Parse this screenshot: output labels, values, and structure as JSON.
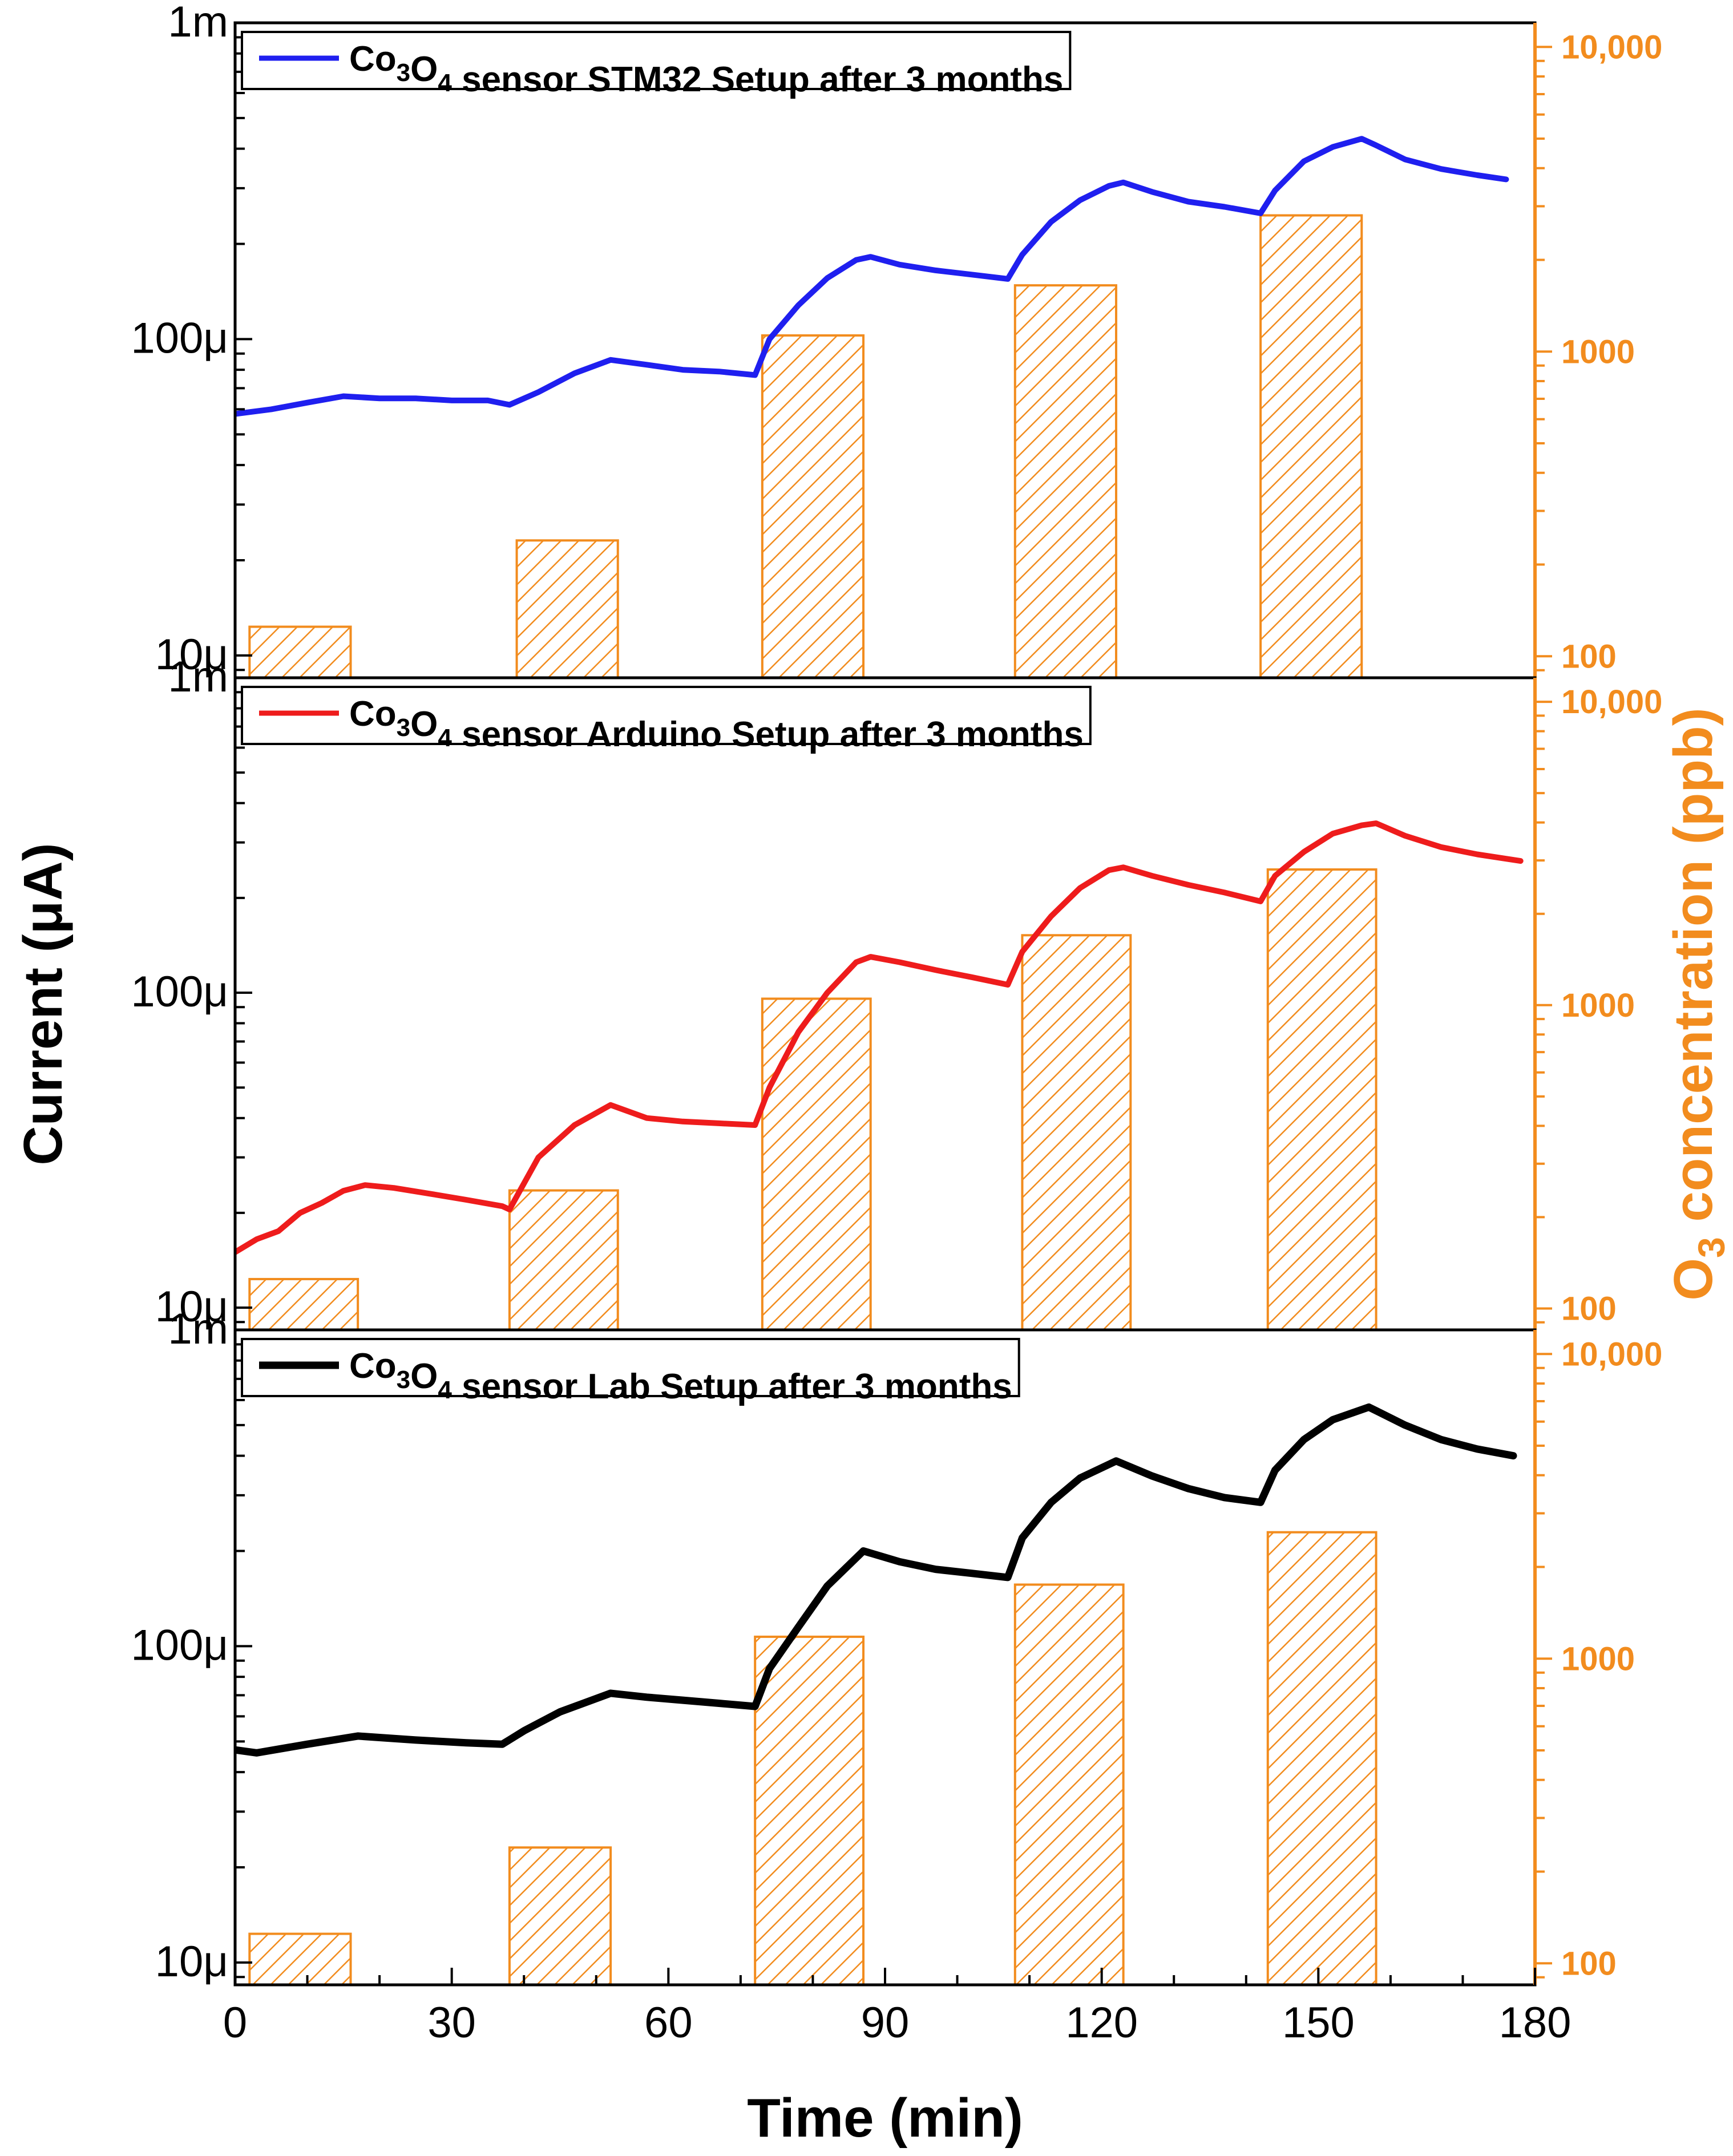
{
  "chart_data": {
    "type": "line+bar",
    "shared_x": {
      "label": "Time (min)",
      "ticks": [
        "0",
        "30",
        "60",
        "90",
        "120",
        "150",
        "180"
      ],
      "range": [
        0,
        180
      ]
    },
    "ylabel_left": "Current (μA)",
    "ylabel_right": "O3 concentration (ppb)",
    "colors": {
      "stm32": "#1F1FEF",
      "arduino": "#EE1C1C",
      "lab": "#000000",
      "bars": "#F28C1E"
    },
    "panels": [
      {
        "id": "stm32",
        "legend": {
          "prefix": "Co",
          "sub1": "3",
          "mid": "O",
          "sub2": "4",
          "suffix": " sensor STM32 Setup after 3 months"
        },
        "line_color": "#1F1FEF",
        "y_left": {
          "scale": "log",
          "range": [
            8.5e-06,
            0.001
          ],
          "ticks": [
            "1m",
            "100μ",
            "10μ"
          ]
        },
        "y_right": {
          "scale": "log",
          "range": [
            85,
            12000
          ],
          "ticks": [
            "10,000",
            "1000",
            "100"
          ]
        },
        "current": {
          "x": [
            0,
            5,
            10,
            15,
            20,
            25,
            30,
            35,
            38,
            42,
            47,
            52,
            57,
            62,
            67,
            72,
            74,
            78,
            82,
            86,
            88,
            92,
            97,
            102,
            107,
            109,
            113,
            117,
            121,
            123,
            127,
            132,
            137,
            142,
            144,
            148,
            152,
            156,
            158,
            162,
            167,
            172,
            176
          ],
          "y": [
            5.8e-05,
            6e-05,
            6.3e-05,
            6.6e-05,
            6.5e-05,
            6.5e-05,
            6.4e-05,
            6.4e-05,
            6.2e-05,
            6.8e-05,
            7.8e-05,
            8.6e-05,
            8.3e-05,
            8e-05,
            7.9e-05,
            7.7e-05,
            0.0001,
            0.000128,
            0.000156,
            0.000178,
            0.000182,
            0.000172,
            0.000165,
            0.00016,
            0.000155,
            0.000185,
            0.000235,
            0.000275,
            0.000305,
            0.000313,
            0.000292,
            0.000272,
            0.000262,
            0.00025,
            0.000295,
            0.000365,
            0.000405,
            0.00043,
            0.00041,
            0.00037,
            0.000345,
            0.00033,
            0.00032
          ]
        },
        "bars": [
          {
            "start": 2,
            "end": 16,
            "ppb": 125
          },
          {
            "start": 39,
            "end": 53,
            "ppb": 240
          },
          {
            "start": 73,
            "end": 87,
            "ppb": 1130
          },
          {
            "start": 108,
            "end": 122,
            "ppb": 1650
          },
          {
            "start": 142,
            "end": 156,
            "ppb": 2800
          }
        ]
      },
      {
        "id": "arduino",
        "legend": {
          "prefix": "Co",
          "sub1": "3",
          "mid": "O",
          "sub2": "4",
          "suffix": " sensor Arduino Setup after 3 months"
        },
        "line_color": "#EE1C1C",
        "y_left": {
          "scale": "log",
          "range": [
            8.5e-06,
            0.001
          ],
          "ticks": [
            "1m",
            "100μ",
            "10μ"
          ]
        },
        "y_right": {
          "scale": "log",
          "range": [
            85,
            12000
          ],
          "ticks": [
            "10,000",
            "1000",
            "100"
          ]
        },
        "current": {
          "x": [
            0,
            3,
            6,
            9,
            12,
            15,
            18,
            22,
            27,
            32,
            37,
            38,
            42,
            47,
            52,
            57,
            62,
            67,
            72,
            74,
            78,
            82,
            86,
            88,
            92,
            97,
            102,
            107,
            109,
            113,
            117,
            121,
            123,
            127,
            132,
            137,
            142,
            144,
            148,
            152,
            156,
            158,
            162,
            167,
            172,
            178
          ],
          "y": [
            1.5e-05,
            1.65e-05,
            1.75e-05,
            2e-05,
            2.15e-05,
            2.35e-05,
            2.45e-05,
            2.4e-05,
            2.3e-05,
            2.2e-05,
            2.1e-05,
            2.05e-05,
            3e-05,
            3.8e-05,
            4.4e-05,
            4e-05,
            3.9e-05,
            3.85e-05,
            3.8e-05,
            5e-05,
            7.5e-05,
            0.0001,
            0.000125,
            0.00013,
            0.000125,
            0.000118,
            0.000112,
            0.000106,
            0.000135,
            0.000175,
            0.000215,
            0.000245,
            0.00025,
            0.000235,
            0.00022,
            0.000208,
            0.000195,
            0.000235,
            0.00028,
            0.00032,
            0.00034,
            0.000345,
            0.000315,
            0.00029,
            0.000275,
            0.000262
          ]
        },
        "bars": [
          {
            "start": 2,
            "end": 17,
            "ppb": 125
          },
          {
            "start": 38,
            "end": 53,
            "ppb": 245
          },
          {
            "start": 73,
            "end": 88,
            "ppb": 1050
          },
          {
            "start": 109,
            "end": 124,
            "ppb": 1700
          },
          {
            "start": 143,
            "end": 158,
            "ppb": 2800
          }
        ]
      },
      {
        "id": "lab",
        "legend": {
          "prefix": "Co",
          "sub1": "3",
          "mid": "O",
          "sub2": "4",
          "suffix": " sensor Lab Setup after 3 months"
        },
        "line_color": "#000000",
        "y_left": {
          "scale": "log",
          "range": [
            8.5e-06,
            0.001
          ],
          "ticks": [
            "1m",
            "100μ",
            "10μ"
          ]
        },
        "y_right": {
          "scale": "log",
          "range": [
            85,
            12000
          ],
          "ticks": [
            "10,000",
            "1000",
            "100"
          ]
        },
        "current": {
          "x": [
            0,
            3,
            10,
            17,
            25,
            32,
            37,
            40,
            45,
            52,
            57,
            62,
            67,
            72,
            74,
            78,
            82,
            87,
            92,
            97,
            102,
            107,
            109,
            113,
            117,
            122,
            127,
            132,
            137,
            142,
            144,
            148,
            152,
            157,
            162,
            167,
            172,
            177
          ],
          "y": [
            4.7e-05,
            4.6e-05,
            4.9e-05,
            5.2e-05,
            5.05e-05,
            4.95e-05,
            4.9e-05,
            5.4e-05,
            6.2e-05,
            7.1e-05,
            6.9e-05,
            6.75e-05,
            6.6e-05,
            6.45e-05,
            8.5e-05,
            0.000115,
            0.000155,
            0.0002,
            0.000185,
            0.000175,
            0.00017,
            0.000165,
            0.00022,
            0.000285,
            0.00034,
            0.000385,
            0.000345,
            0.000315,
            0.000295,
            0.000285,
            0.00036,
            0.00045,
            0.00052,
            0.00057,
            0.0005,
            0.00045,
            0.00042,
            0.0004
          ]
        },
        "bars": [
          {
            "start": 2,
            "end": 16,
            "ppb": 125
          },
          {
            "start": 38,
            "end": 52,
            "ppb": 240
          },
          {
            "start": 72,
            "end": 87,
            "ppb": 1180
          },
          {
            "start": 108,
            "end": 123,
            "ppb": 1750
          },
          {
            "start": 143,
            "end": 158,
            "ppb": 2600
          }
        ]
      }
    ]
  }
}
